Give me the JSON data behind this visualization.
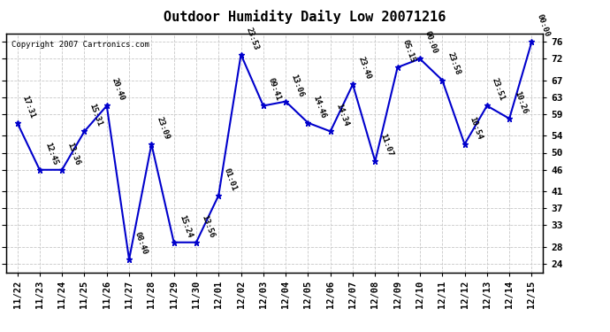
{
  "title": "Outdoor Humidity Daily Low 20071216",
  "copyright": "Copyright 2007 Cartronics.com",
  "x_labels": [
    "11/22",
    "11/23",
    "11/24",
    "11/25",
    "11/26",
    "11/27",
    "11/28",
    "11/29",
    "11/30",
    "12/01",
    "12/02",
    "12/03",
    "12/04",
    "12/05",
    "12/06",
    "12/07",
    "12/08",
    "12/09",
    "12/10",
    "12/11",
    "12/12",
    "12/13",
    "12/14",
    "12/15"
  ],
  "y_values": [
    57,
    46,
    46,
    55,
    61,
    25,
    52,
    29,
    29,
    40,
    73,
    61,
    62,
    57,
    55,
    66,
    48,
    70,
    72,
    67,
    52,
    61,
    58,
    76
  ],
  "point_labels": [
    "17:31",
    "12:45",
    "13:36",
    "15:31",
    "20:40",
    "08:40",
    "23:09",
    "15:24",
    "13:56",
    "01:01",
    "23:53",
    "09:41",
    "13:06",
    "14:46",
    "14:34",
    "23:40",
    "11:07",
    "05:15",
    "00:00",
    "23:58",
    "10:54",
    "23:51",
    "10:26",
    "00:00"
  ],
  "yticks": [
    24,
    28,
    33,
    37,
    41,
    46,
    50,
    54,
    59,
    63,
    67,
    72,
    76
  ],
  "line_color": "#0000cc",
  "marker_color": "#0000cc",
  "bg_color": "#ffffff",
  "grid_color": "#c8c8c8",
  "title_fontsize": 11,
  "annot_fontsize": 6.5,
  "tick_fontsize": 7.5
}
